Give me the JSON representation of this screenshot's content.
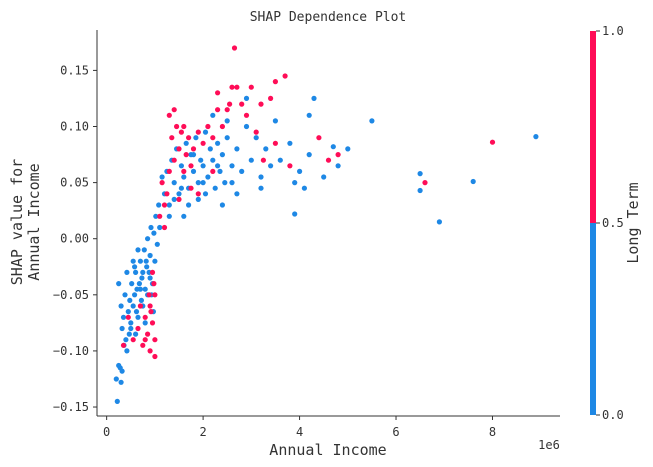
{
  "chart_data": {
    "type": "scatter",
    "title": "SHAP Dependence Plot",
    "xlabel": "Annual Income",
    "ylabel_lines": [
      "SHAP value for",
      "Annual Income"
    ],
    "x_scale_label": "1e6",
    "xlim": [
      -0.2,
      9.4
    ],
    "ylim": [
      -0.158,
      0.186
    ],
    "x_ticks": [
      0,
      2,
      4,
      6,
      8
    ],
    "y_ticks": [
      -0.15,
      -0.1,
      -0.05,
      0.0,
      0.05,
      0.1,
      0.15
    ],
    "y_tick_labels": [
      "−0.15",
      "−0.10",
      "−0.05",
      "0.00",
      "0.05",
      "0.10",
      "0.15"
    ],
    "colorbar": {
      "label": "Long Term",
      "ticks": [
        0.0,
        0.5,
        1.0
      ],
      "tick_labels": [
        "0.0",
        "0.5",
        "1.0"
      ],
      "low_color": "#1e88e5",
      "high_color": "#ff0d57"
    },
    "series": [
      {
        "name": "Long Term = 0",
        "color": "#1e88e5",
        "points": [
          [
            0.22,
            -0.145
          ],
          [
            0.2,
            -0.125
          ],
          [
            0.25,
            -0.113
          ],
          [
            0.3,
            -0.128
          ],
          [
            0.28,
            -0.115
          ],
          [
            0.32,
            -0.118
          ],
          [
            0.25,
            -0.04
          ],
          [
            0.3,
            -0.06
          ],
          [
            0.35,
            -0.07
          ],
          [
            0.32,
            -0.08
          ],
          [
            0.38,
            -0.05
          ],
          [
            0.4,
            -0.09
          ],
          [
            0.42,
            -0.03
          ],
          [
            0.45,
            -0.065
          ],
          [
            0.48,
            -0.055
          ],
          [
            0.5,
            -0.075
          ],
          [
            0.52,
            -0.04
          ],
          [
            0.55,
            -0.02
          ],
          [
            0.58,
            -0.05
          ],
          [
            0.6,
            -0.03
          ],
          [
            0.62,
            -0.065
          ],
          [
            0.65,
            -0.01
          ],
          [
            0.68,
            -0.04
          ],
          [
            0.7,
            -0.02
          ],
          [
            0.72,
            -0.055
          ],
          [
            0.75,
            -0.03
          ],
          [
            0.78,
            -0.01
          ],
          [
            0.8,
            -0.045
          ],
          [
            0.82,
            -0.02
          ],
          [
            0.85,
            0.0
          ],
          [
            0.88,
            -0.03
          ],
          [
            0.9,
            -0.015
          ],
          [
            0.92,
            0.01
          ],
          [
            0.95,
            -0.04
          ],
          [
            0.98,
            0.005
          ],
          [
            1.0,
            -0.02
          ],
          [
            1.02,
            0.02
          ],
          [
            1.05,
            -0.005
          ],
          [
            1.08,
            0.03
          ],
          [
            1.1,
            0.01
          ],
          [
            0.5,
            -0.08
          ],
          [
            0.55,
            -0.06
          ],
          [
            0.6,
            -0.085
          ],
          [
            0.65,
            -0.07
          ],
          [
            0.7,
            -0.045
          ],
          [
            0.75,
            -0.06
          ],
          [
            0.8,
            -0.075
          ],
          [
            0.85,
            -0.05
          ],
          [
            0.9,
            -0.035
          ],
          [
            0.42,
            -0.1
          ],
          [
            0.36,
            -0.095
          ],
          [
            0.47,
            -0.085
          ],
          [
            0.58,
            -0.025
          ],
          [
            0.63,
            -0.045
          ],
          [
            0.73,
            -0.035
          ],
          [
            0.83,
            -0.025
          ],
          [
            0.93,
            -0.05
          ],
          [
            0.97,
            -0.065
          ],
          [
            1.2,
            0.04
          ],
          [
            1.25,
            0.06
          ],
          [
            1.3,
            0.03
          ],
          [
            1.35,
            0.07
          ],
          [
            1.4,
            0.05
          ],
          [
            1.45,
            0.08
          ],
          [
            1.5,
            0.04
          ],
          [
            1.55,
            0.065
          ],
          [
            1.6,
            0.055
          ],
          [
            1.65,
            0.085
          ],
          [
            1.7,
            0.045
          ],
          [
            1.75,
            0.075
          ],
          [
            1.8,
            0.06
          ],
          [
            1.85,
            0.09
          ],
          [
            1.9,
            0.05
          ],
          [
            1.95,
            0.07
          ],
          [
            2.0,
            0.065
          ],
          [
            2.05,
            0.095
          ],
          [
            2.1,
            0.055
          ],
          [
            2.15,
            0.08
          ],
          [
            2.2,
            0.07
          ],
          [
            2.25,
            0.045
          ],
          [
            2.3,
            0.085
          ],
          [
            2.35,
            0.06
          ],
          [
            2.4,
            0.075
          ],
          [
            2.45,
            0.05
          ],
          [
            2.5,
            0.09
          ],
          [
            2.6,
            0.065
          ],
          [
            2.7,
            0.08
          ],
          [
            2.8,
            0.06
          ],
          [
            2.9,
            0.1
          ],
          [
            3.0,
            0.07
          ],
          [
            3.1,
            0.09
          ],
          [
            3.2,
            0.055
          ],
          [
            3.3,
            0.08
          ],
          [
            3.4,
            0.065
          ],
          [
            3.6,
            0.07
          ],
          [
            3.8,
            0.085
          ],
          [
            4.0,
            0.06
          ],
          [
            4.2,
            0.075
          ],
          [
            2.2,
            0.11
          ],
          [
            2.5,
            0.105
          ],
          [
            2.9,
            0.125
          ],
          [
            3.5,
            0.105
          ],
          [
            4.3,
            0.125
          ],
          [
            4.2,
            0.11
          ],
          [
            2.7,
            0.04
          ],
          [
            3.2,
            0.045
          ],
          [
            3.9,
            0.05
          ],
          [
            4.1,
            0.045
          ],
          [
            4.5,
            0.055
          ],
          [
            4.8,
            0.065
          ],
          [
            5.0,
            0.08
          ],
          [
            4.7,
            0.082
          ],
          [
            5.5,
            0.105
          ],
          [
            3.9,
            0.022
          ],
          [
            6.5,
            0.058
          ],
          [
            6.5,
            0.043
          ],
          [
            7.6,
            0.051
          ],
          [
            6.9,
            0.015
          ],
          [
            8.9,
            0.091
          ],
          [
            1.3,
            0.02
          ],
          [
            1.4,
            0.035
          ],
          [
            1.55,
            0.045
          ],
          [
            1.7,
            0.03
          ],
          [
            1.9,
            0.035
          ],
          [
            2.05,
            0.04
          ],
          [
            2.4,
            0.03
          ],
          [
            1.15,
            0.055
          ],
          [
            1.6,
            0.02
          ],
          [
            1.8,
            0.075
          ],
          [
            2.0,
            0.05
          ],
          [
            2.3,
            0.065
          ],
          [
            2.6,
            0.05
          ]
        ]
      },
      {
        "name": "Long Term = 1",
        "color": "#ff0d57",
        "points": [
          [
            0.35,
            -0.095
          ],
          [
            0.45,
            -0.07
          ],
          [
            0.55,
            -0.09
          ],
          [
            0.65,
            -0.08
          ],
          [
            0.7,
            -0.06
          ],
          [
            0.75,
            -0.095
          ],
          [
            0.8,
            -0.07
          ],
          [
            0.85,
            -0.085
          ],
          [
            0.9,
            -0.06
          ],
          [
            0.95,
            -0.075
          ],
          [
            0.98,
            -0.04
          ],
          [
            1.0,
            -0.105
          ],
          [
            1.0,
            -0.09
          ],
          [
            0.9,
            -0.1
          ],
          [
            0.95,
            -0.03
          ],
          [
            1.0,
            -0.05
          ],
          [
            0.88,
            -0.05
          ],
          [
            0.92,
            -0.065
          ],
          [
            0.8,
            -0.09
          ],
          [
            1.1,
            0.02
          ],
          [
            1.15,
            0.05
          ],
          [
            1.2,
            0.01
          ],
          [
            1.25,
            0.04
          ],
          [
            1.3,
            0.06
          ],
          [
            1.35,
            0.09
          ],
          [
            1.4,
            0.07
          ],
          [
            1.45,
            0.1
          ],
          [
            1.5,
            0.08
          ],
          [
            1.55,
            0.095
          ],
          [
            1.6,
            0.06
          ],
          [
            1.65,
            0.075
          ],
          [
            1.7,
            0.09
          ],
          [
            1.75,
            0.065
          ],
          [
            1.8,
            0.08
          ],
          [
            1.9,
            0.095
          ],
          [
            2.0,
            0.085
          ],
          [
            2.1,
            0.1
          ],
          [
            2.2,
            0.09
          ],
          [
            2.3,
            0.115
          ],
          [
            2.4,
            0.1
          ],
          [
            2.5,
            0.115
          ],
          [
            2.6,
            0.135
          ],
          [
            2.7,
            0.135
          ],
          [
            2.8,
            0.12
          ],
          [
            3.0,
            0.135
          ],
          [
            3.2,
            0.12
          ],
          [
            3.4,
            0.125
          ],
          [
            3.5,
            0.14
          ],
          [
            3.7,
            0.145
          ],
          [
            2.65,
            0.17
          ],
          [
            2.3,
            0.13
          ],
          [
            2.55,
            0.12
          ],
          [
            1.4,
            0.115
          ],
          [
            1.3,
            0.11
          ],
          [
            1.6,
            0.1
          ],
          [
            2.9,
            0.11
          ],
          [
            3.1,
            0.095
          ],
          [
            3.25,
            0.07
          ],
          [
            3.5,
            0.085
          ],
          [
            3.8,
            0.065
          ],
          [
            4.4,
            0.09
          ],
          [
            4.8,
            0.075
          ],
          [
            4.6,
            0.07
          ],
          [
            6.6,
            0.05
          ],
          [
            8.0,
            0.086
          ],
          [
            1.9,
            0.04
          ],
          [
            2.2,
            0.06
          ],
          [
            1.2,
            0.03
          ],
          [
            1.5,
            0.035
          ],
          [
            1.75,
            0.045
          ]
        ]
      }
    ]
  }
}
